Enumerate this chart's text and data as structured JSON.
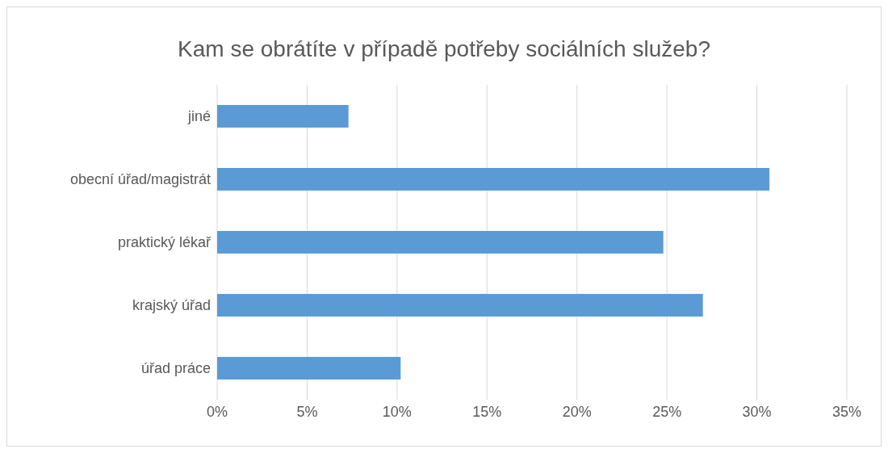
{
  "chart_data": {
    "type": "bar",
    "orientation": "horizontal",
    "title": "Kam se obrátíte v případě potřeby sociálních služeb?",
    "categories": [
      "jiné",
      "obecní úřad/magistrát",
      "praktický lékař",
      "krajský úřad",
      "úřad práce"
    ],
    "values": [
      7.3,
      30.7,
      24.8,
      27.0,
      10.2
    ],
    "color": "#5b9bd5",
    "xlim": [
      0,
      35
    ],
    "xticks": [
      {
        "value": 0,
        "label": "0%"
      },
      {
        "value": 5,
        "label": "5%"
      },
      {
        "value": 10,
        "label": "10%"
      },
      {
        "value": 15,
        "label": "15%"
      },
      {
        "value": 20,
        "label": "20%"
      },
      {
        "value": 25,
        "label": "25%"
      },
      {
        "value": 30,
        "label": "30%"
      },
      {
        "value": 35,
        "label": "35%"
      }
    ],
    "grid": "x",
    "legend": false
  }
}
